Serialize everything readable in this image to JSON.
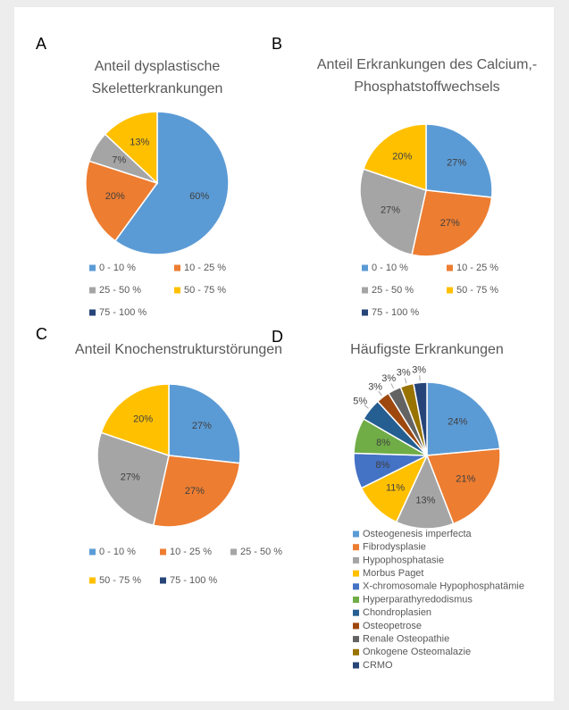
{
  "chart_data": [
    {
      "type": "pie",
      "label": "A",
      "title": [
        "Anteil dysplastische",
        "Skeletterkrankungen"
      ],
      "categories": [
        "0 - 10 %",
        "10 - 25 %",
        "25 - 50 %",
        "50 - 75 %",
        "75 - 100 %"
      ],
      "values": [
        60,
        20,
        7,
        13,
        0
      ],
      "value_labels": [
        "60%",
        "20%",
        "7%",
        "13%",
        null
      ],
      "colors": [
        "#5b9bd5",
        "#ed7d31",
        "#a5a5a5",
        "#ffc000",
        "#264478"
      ]
    },
    {
      "type": "pie",
      "label": "B",
      "title": [
        "Anteil Erkrankungen des Calcium,-",
        "Phosphatstoffwechsels"
      ],
      "categories": [
        "0 - 10 %",
        "10 - 25 %",
        "25 - 50 %",
        "50 - 75 %",
        "75 - 100 %"
      ],
      "values": [
        27,
        27,
        27,
        20,
        0
      ],
      "value_labels": [
        "27%",
        "27%",
        "27%",
        "20%",
        null
      ],
      "colors": [
        "#5b9bd5",
        "#ed7d31",
        "#a5a5a5",
        "#ffc000",
        "#264478"
      ]
    },
    {
      "type": "pie",
      "label": "C",
      "title": [
        "Anteil Knochenstrukturstörungen"
      ],
      "categories": [
        "0 - 10 %",
        "10 - 25 %",
        "25 - 50 %",
        "50 - 75 %",
        "75 - 100 %"
      ],
      "values": [
        27,
        27,
        27,
        20,
        0
      ],
      "value_labels": [
        "27%",
        "27%",
        "27%",
        "20%",
        null
      ],
      "colors": [
        "#5b9bd5",
        "#ed7d31",
        "#a5a5a5",
        "#ffc000",
        "#264478"
      ]
    },
    {
      "type": "pie",
      "label": "D",
      "title": [
        "Häufigste Erkrankungen"
      ],
      "categories": [
        "Osteogenesis imperfecta",
        "Fibrodysplasie",
        "Hypophosphatasie",
        "Morbus Paget",
        "X-chromosomale Hypophosphatämie",
        "Hyperparathyredodismus",
        "Chondroplasien",
        "Osteopetrose",
        "Renale Osteopathie",
        "Onkogene Osteomalazie",
        "CRMO"
      ],
      "values": [
        24,
        21,
        13,
        11,
        8,
        8,
        5,
        3,
        3,
        3,
        3
      ],
      "value_labels": [
        "24%",
        "21%",
        "13%",
        "11%",
        "8%",
        "8%",
        "5%",
        "3%",
        "3%",
        "3%",
        "3%"
      ],
      "colors": [
        "#5b9bd5",
        "#ed7d31",
        "#a5a5a5",
        "#ffc000",
        "#4472c4",
        "#70ad47",
        "#255e91",
        "#9e480e",
        "#636363",
        "#997300",
        "#264478"
      ]
    }
  ]
}
